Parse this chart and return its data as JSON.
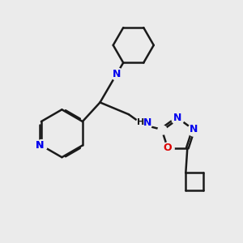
{
  "bg_color": "#ebebeb",
  "bond_color": "#1a1a1a",
  "N_color": "#0000ee",
  "O_color": "#dd0000",
  "line_width": 1.8,
  "dbo": 0.055,
  "figsize": [
    3.0,
    3.0
  ],
  "dpi": 100,
  "xlim": [
    0,
    10
  ],
  "ylim": [
    0,
    10
  ]
}
